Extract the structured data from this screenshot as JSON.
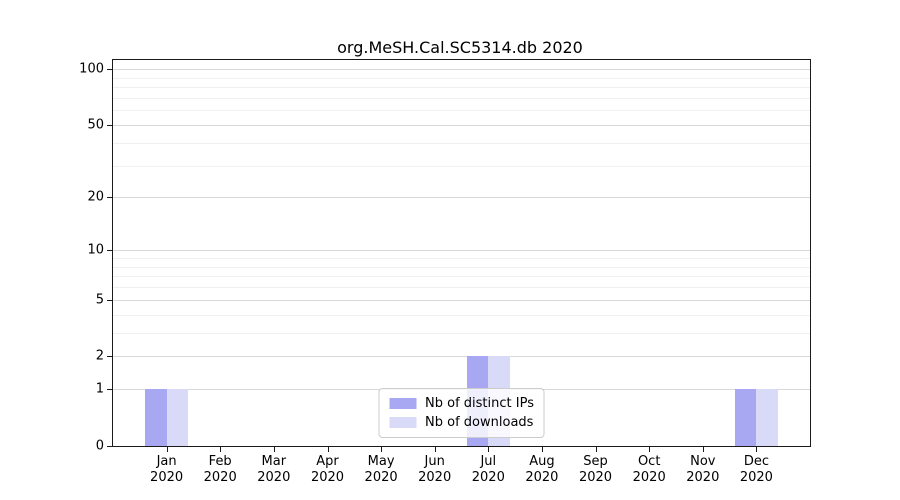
{
  "chart_data": {
    "type": "bar",
    "title": "org.MeSH.Cal.SC5314.db 2020",
    "categories": [
      {
        "month": "Jan",
        "year": "2020"
      },
      {
        "month": "Feb",
        "year": "2020"
      },
      {
        "month": "Mar",
        "year": "2020"
      },
      {
        "month": "Apr",
        "year": "2020"
      },
      {
        "month": "May",
        "year": "2020"
      },
      {
        "month": "Jun",
        "year": "2020"
      },
      {
        "month": "Jul",
        "year": "2020"
      },
      {
        "month": "Aug",
        "year": "2020"
      },
      {
        "month": "Sep",
        "year": "2020"
      },
      {
        "month": "Oct",
        "year": "2020"
      },
      {
        "month": "Nov",
        "year": "2020"
      },
      {
        "month": "Dec",
        "year": "2020"
      }
    ],
    "series": [
      {
        "name": "Nb of distinct IPs",
        "color": "#a8a8f2",
        "values": [
          1,
          0,
          0,
          0,
          0,
          0,
          2,
          0,
          0,
          0,
          0,
          1
        ]
      },
      {
        "name": "Nb of downloads",
        "color": "#d9d9f8",
        "values": [
          1,
          0,
          0,
          0,
          0,
          0,
          2,
          0,
          0,
          0,
          0,
          1
        ]
      }
    ],
    "xlabel": "",
    "ylabel": "",
    "y_scale": "log1p",
    "y_major_ticks": [
      0,
      1,
      2,
      5,
      10,
      20,
      50,
      100
    ],
    "y_minor_ticks": [
      3,
      4,
      6,
      7,
      8,
      9,
      30,
      40,
      60,
      70,
      80,
      90
    ],
    "ylim": [
      0,
      112
    ],
    "grid": "horizontal, major and minor",
    "legend_position": "lower center"
  }
}
